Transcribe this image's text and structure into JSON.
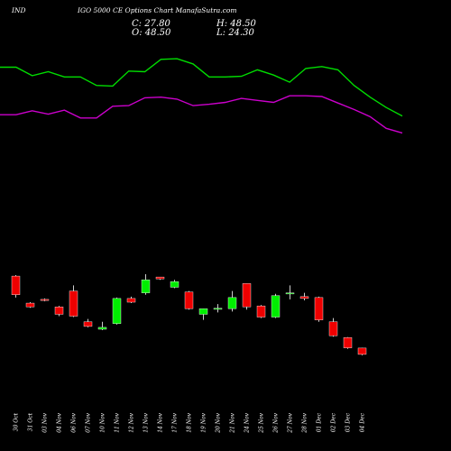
{
  "header": {
    "ticker": "IND",
    "subtitle": "IGO 5000  CE Options  Chart ManafaSutra.com",
    "close": "C: 27.80",
    "high": "H: 48.50",
    "open": "O: 48.50",
    "low": "L: 24.30"
  },
  "colors": {
    "background": "#000000",
    "up": "#00ee00",
    "down": "#ee0000",
    "upper_band": "#00dd00",
    "lower_band": "#cc00cc"
  },
  "chart_data": {
    "type": "candlestick",
    "categories": [
      "30 Oct",
      "31 Oct",
      "03 Nov",
      "04 Nov",
      "06 Nov",
      "07 Nov",
      "10 Nov",
      "11 Nov",
      "12 Nov",
      "13 Nov",
      "14 Nov",
      "17 Nov",
      "18 Nov",
      "19 Nov",
      "20 Nov",
      "21 Nov",
      "24 Nov",
      "25 Nov",
      "26 Nov",
      "27 Nov",
      "28 Nov",
      "01 Dec",
      "02 Dec",
      "03 Dec",
      "04 Dec"
    ],
    "candles": [
      {
        "open": 105,
        "close": 85,
        "high": 106,
        "low": 82
      },
      {
        "open": 76,
        "close": 72,
        "high": 77,
        "low": 71
      },
      {
        "open": 80,
        "close": 79,
        "high": 81,
        "low": 78
      },
      {
        "open": 72,
        "close": 64,
        "high": 73,
        "low": 62
      },
      {
        "open": 89,
        "close": 62,
        "high": 95,
        "low": 61
      },
      {
        "open": 56,
        "close": 51,
        "high": 59,
        "low": 50
      },
      {
        "open": 48,
        "close": 50,
        "high": 56,
        "low": 47
      },
      {
        "open": 54,
        "close": 81,
        "high": 82,
        "low": 53
      },
      {
        "open": 81,
        "close": 77,
        "high": 83,
        "low": 76
      },
      {
        "open": 87,
        "close": 101,
        "high": 107,
        "low": 85
      },
      {
        "open": 104,
        "close": 102,
        "high": 104,
        "low": 101
      },
      {
        "open": 93,
        "close": 99,
        "high": 101,
        "low": 92
      },
      {
        "open": 88,
        "close": 70,
        "high": 89,
        "low": 69
      },
      {
        "open": 64,
        "close": 70,
        "high": 70,
        "low": 58
      },
      {
        "open": 70,
        "close": 70.5,
        "high": 75,
        "low": 66
      },
      {
        "open": 70,
        "close": 82,
        "high": 89,
        "low": 67
      },
      {
        "open": 97,
        "close": 72,
        "high": 97,
        "low": 69
      },
      {
        "open": 73,
        "close": 61,
        "high": 74,
        "low": 60
      },
      {
        "open": 61,
        "close": 84,
        "high": 86,
        "low": 60
      },
      {
        "open": 86,
        "close": 87,
        "high": 95,
        "low": 80
      },
      {
        "open": 83,
        "close": 81,
        "high": 87,
        "low": 79
      },
      {
        "open": 82,
        "close": 58,
        "high": 83,
        "low": 56
      },
      {
        "open": 56,
        "close": 41,
        "high": 60,
        "low": 40
      },
      {
        "open": 39,
        "close": 28,
        "high": 39.5,
        "low": 27
      },
      {
        "open": 27.8,
        "close": 21,
        "high": 28,
        "low": 20
      }
    ],
    "upper_band": [
      225,
      225,
      212,
      218,
      210,
      210,
      197,
      196,
      219,
      218,
      237,
      238,
      230,
      210,
      210,
      211,
      221,
      213,
      202,
      223,
      226,
      221,
      197,
      179,
      163,
      150
    ],
    "lower_band": [
      152,
      152,
      158,
      153,
      159,
      147,
      147,
      165,
      166,
      178,
      179,
      176,
      166,
      168,
      171,
      177,
      174,
      171,
      181,
      181,
      180,
      170,
      160,
      149,
      131,
      124
    ],
    "band_y_range": [
      -32.06,
      258.94
    ],
    "candle_y_range": [
      -34.25,
      168.94
    ]
  }
}
